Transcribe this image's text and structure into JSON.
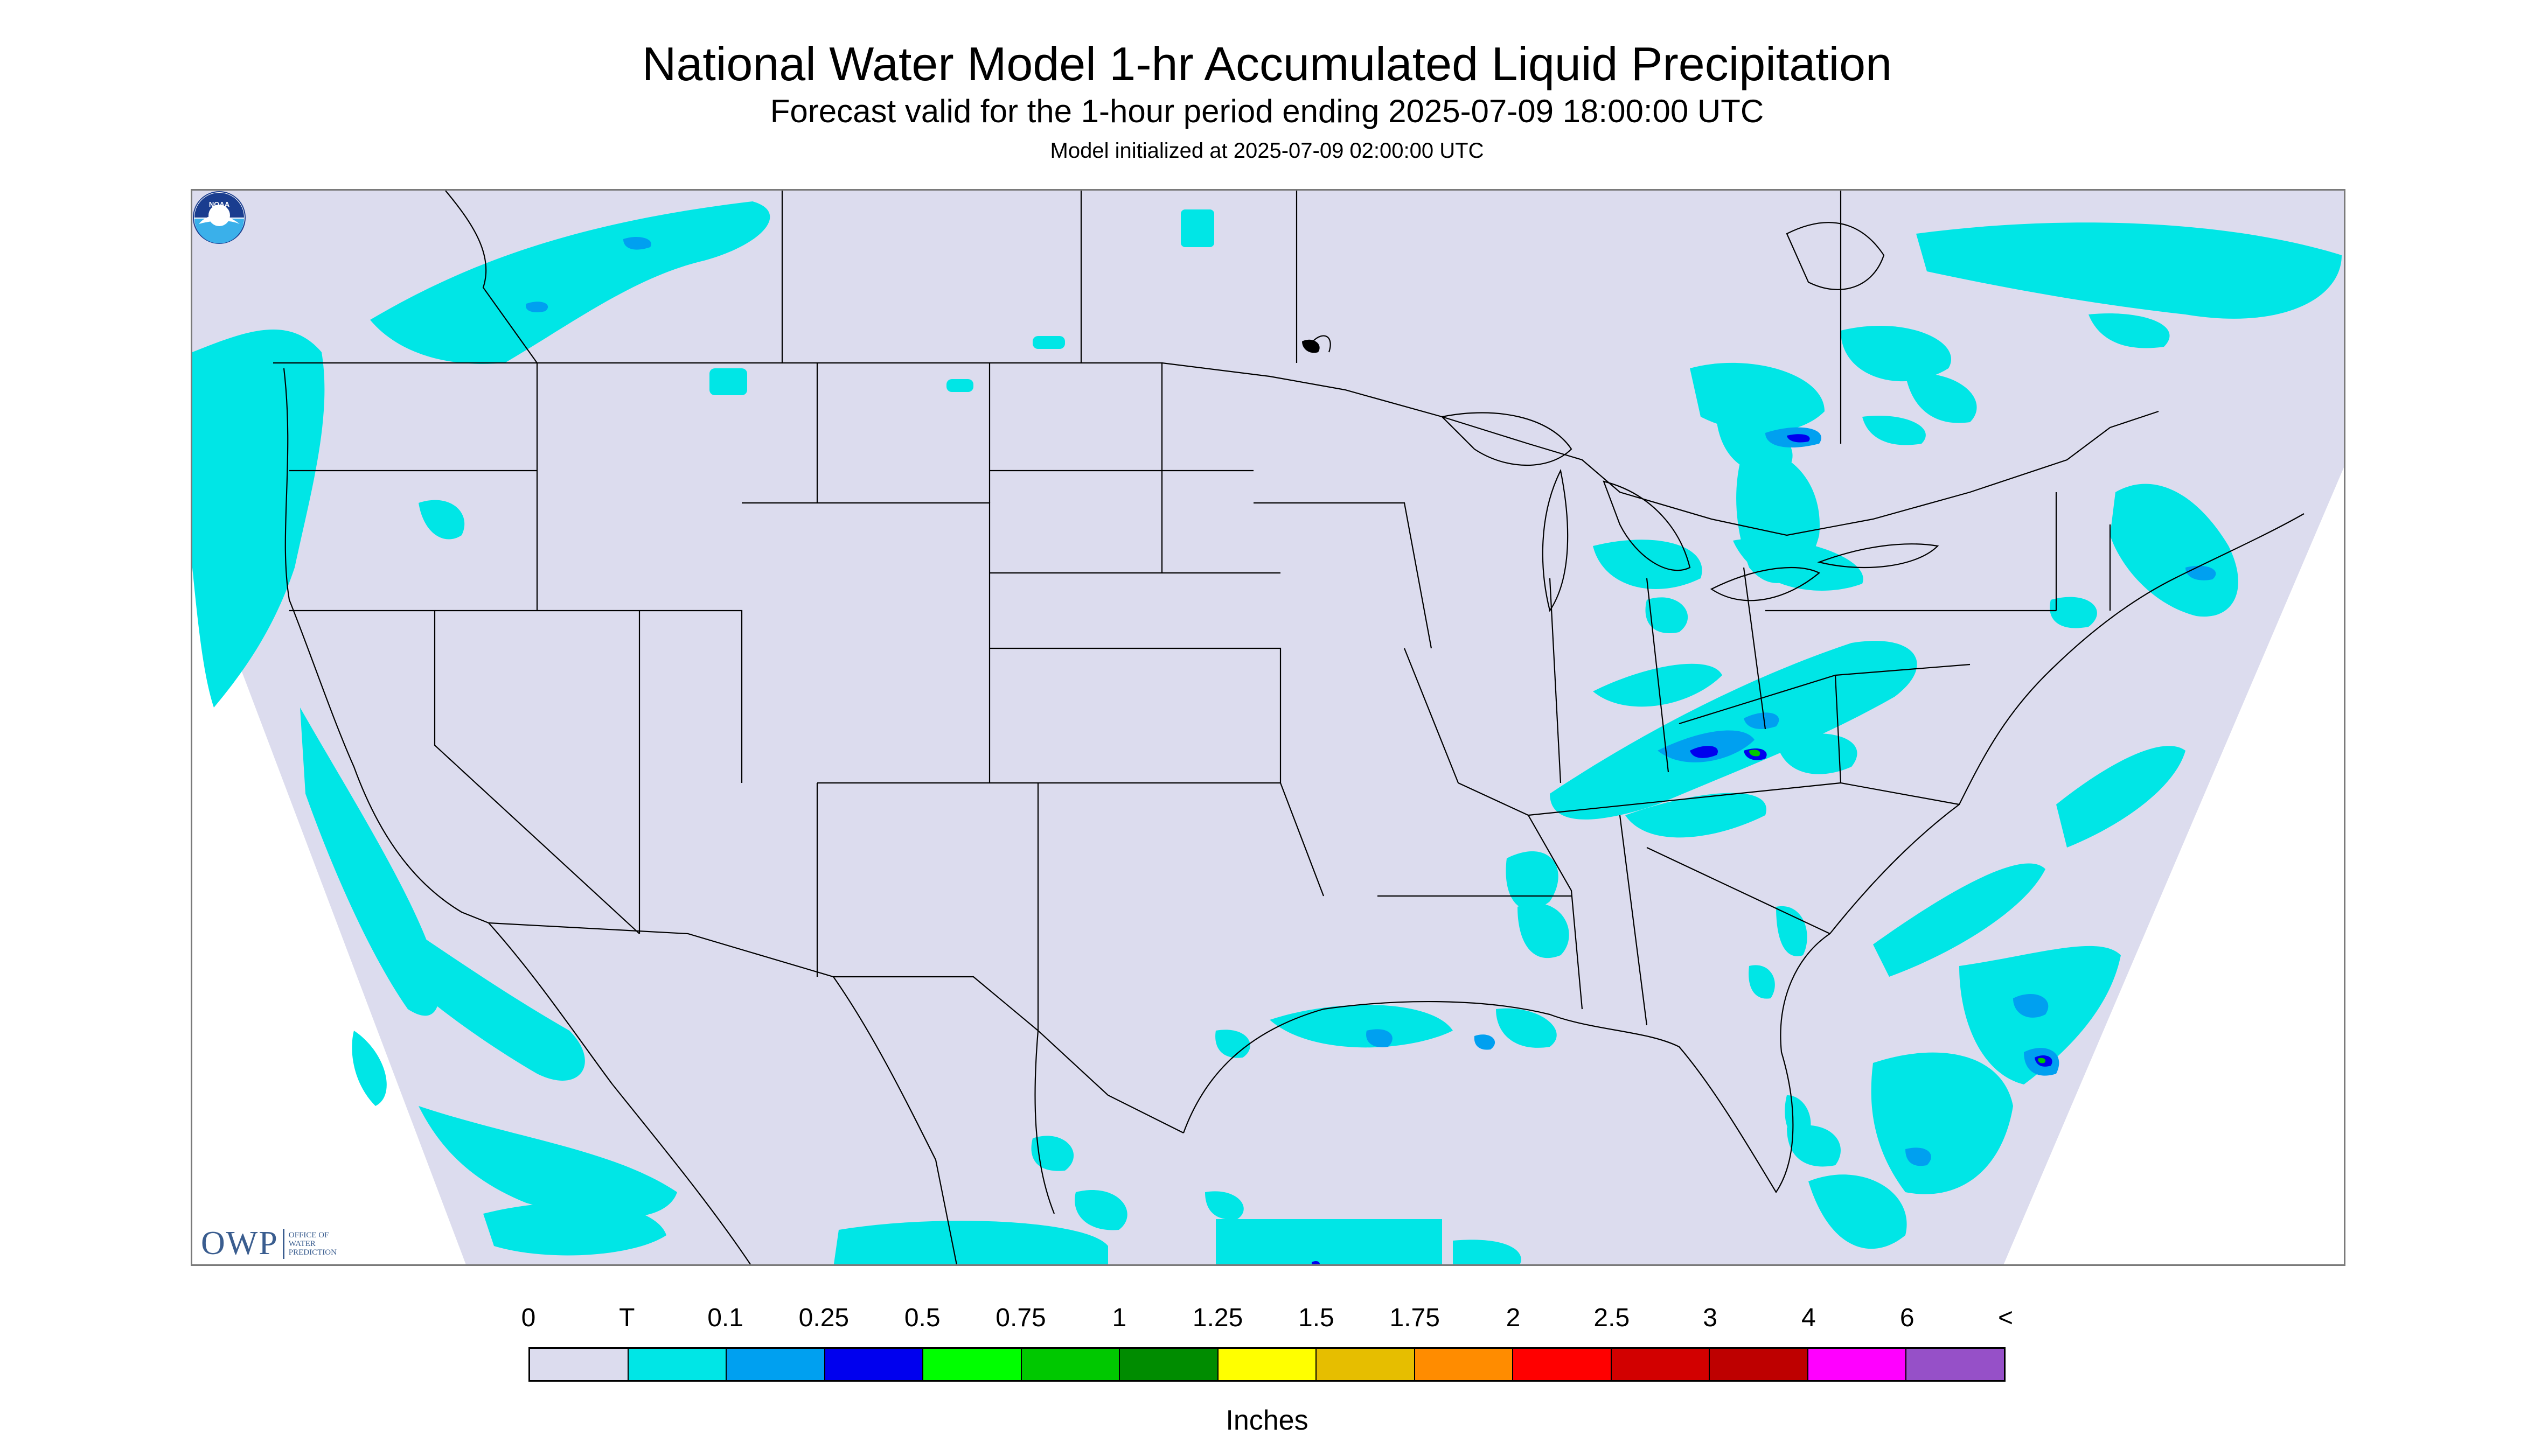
{
  "title": "National Water Model 1-hr Accumulated Liquid Precipitation",
  "subtitle": "Forecast valid for the 1-hour period ending 2025-07-09 18:00:00 UTC",
  "init_line": "Model initialized at 2025-07-09 02:00:00 UTC",
  "logos": {
    "owp_abbrev": "OWP",
    "owp_line1": "OFFICE OF",
    "owp_line2": "WATER",
    "owp_line3": "PREDICTION",
    "noaa_text": "NOAA"
  },
  "legend": {
    "labels": [
      "0",
      "T",
      "0.1",
      "0.25",
      "0.5",
      "0.75",
      "1",
      "1.25",
      "1.5",
      "1.75",
      "2",
      "2.5",
      "3",
      "4",
      "6",
      "<"
    ],
    "colors": [
      "#dcdcee",
      "#00e6e6",
      "#00a0f0",
      "#0000ee",
      "#00ff00",
      "#00c800",
      "#008c00",
      "#ffff00",
      "#e6be00",
      "#ff8c00",
      "#ff0000",
      "#d20000",
      "#be0000",
      "#ff00ff",
      "#9650c8"
    ],
    "units": "Inches"
  },
  "map_colors": {
    "background": "#dcdcee",
    "trace": "#00e6e6",
    "light": "#00a0f0",
    "moderate": "#0000ee",
    "heavy": "#00c800",
    "boundary": "#000000"
  }
}
